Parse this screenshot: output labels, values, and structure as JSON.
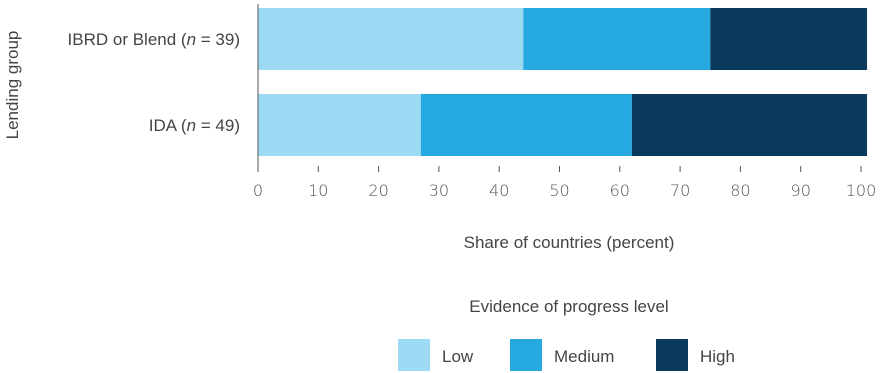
{
  "chart_data": {
    "type": "bar",
    "orientation": "horizontal",
    "stacked": true,
    "categories": [
      {
        "prefix": "IBRD or Blend (",
        "n_symbol": "n",
        "suffix": " = 39)"
      },
      {
        "prefix": "IDA (",
        "n_symbol": "n",
        "suffix": " = 49)"
      }
    ],
    "series": [
      {
        "name": "Low",
        "values": [
          44,
          27
        ],
        "color": "#9ddbf5"
      },
      {
        "name": "Medium",
        "values": [
          31,
          35
        ],
        "color": "#26a8e0"
      },
      {
        "name": "High",
        "values": [
          26,
          39
        ],
        "color": "#0a3a5c"
      }
    ],
    "xlabel": "Share of countries (percent)",
    "ylabel": "Lending group",
    "xlim": [
      0,
      100
    ],
    "xticks": [
      "0",
      "10",
      "20",
      "30",
      "40",
      "50",
      "60",
      "70",
      "80",
      "90",
      "100"
    ],
    "legend_title": "Evidence of progress level",
    "legend_position": "bottom",
    "grid": false
  }
}
